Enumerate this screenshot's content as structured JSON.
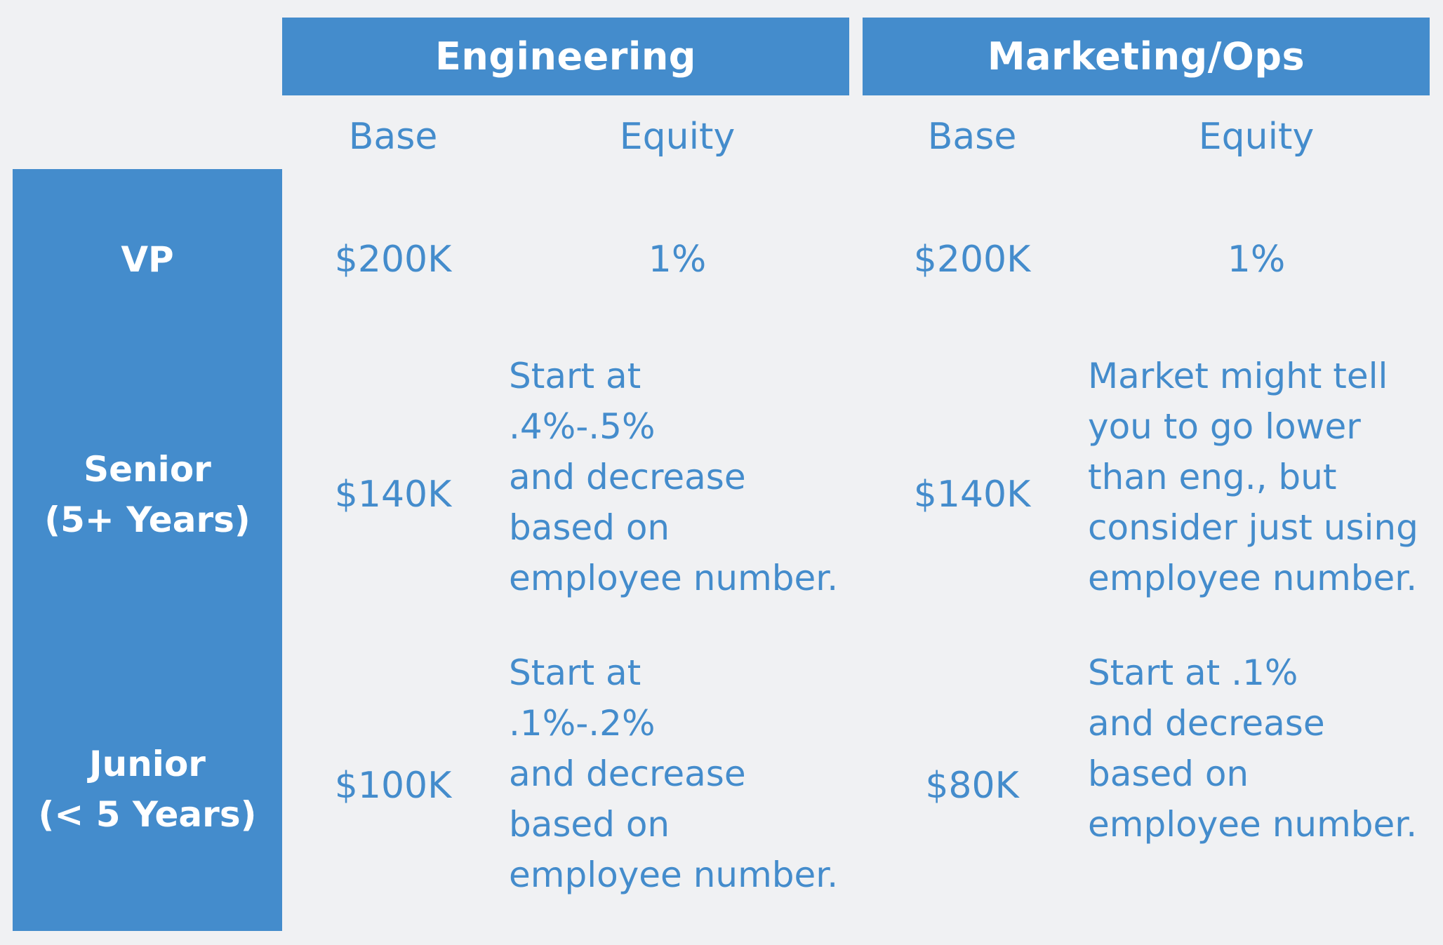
{
  "departments": {
    "engineering": "Engineering",
    "marketing_ops": "Marketing/Ops"
  },
  "subheaders": {
    "engineering": {
      "base": "Base",
      "equity": "Equity"
    },
    "marketing_ops": {
      "base": "Base",
      "equity": "Equity"
    }
  },
  "levels": {
    "vp": {
      "line1": "VP"
    },
    "senior": {
      "line1": "Senior",
      "line2": "(5+ Years)"
    },
    "junior": {
      "line1": "Junior",
      "line2": "(< 5 Years)"
    }
  },
  "rows": {
    "vp": {
      "engineering": {
        "base": "$200K",
        "equity": "1%"
      },
      "marketing_ops": {
        "base": "$200K",
        "equity": "1%"
      }
    },
    "senior": {
      "engineering": {
        "base": "$140K",
        "equity_lines": [
          "Start at",
          ".4%-.5%",
          "and decrease",
          "based on",
          "employee number."
        ]
      },
      "marketing_ops": {
        "base": "$140K",
        "equity_lines": [
          "Market might tell",
          "you to go lower",
          "than eng., but",
          "consider just using",
          "employee number."
        ]
      }
    },
    "junior": {
      "engineering": {
        "base": "$100K",
        "equity_lines": [
          "Start at",
          ".1%-.2%",
          "and decrease",
          "based on",
          "employee number."
        ]
      },
      "marketing_ops": {
        "base": "$80K",
        "equity_lines": [
          "Start at .1%",
          "and decrease",
          "based on",
          "employee number."
        ]
      }
    }
  },
  "colors": {
    "accent": "#448ccc",
    "background": "#f0f1f3",
    "header_text": "#ffffff"
  }
}
